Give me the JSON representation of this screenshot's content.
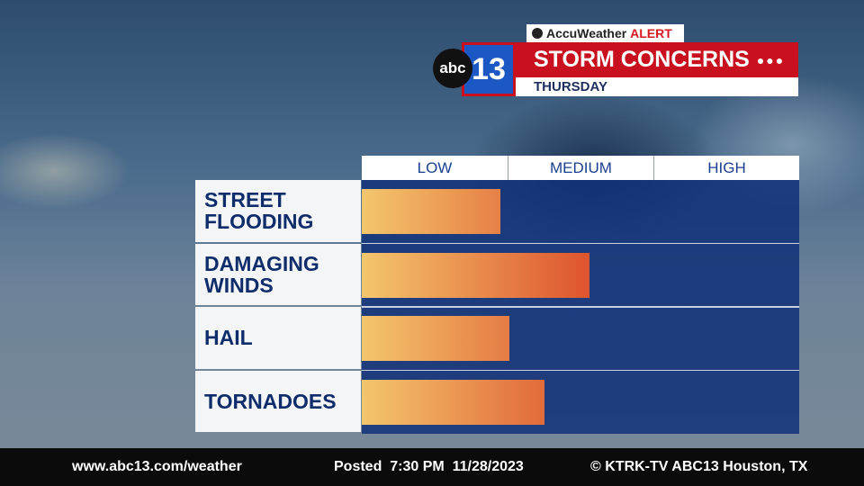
{
  "header": {
    "brand": "AccuWeather",
    "alert": "ALERT",
    "logo_text": "abc",
    "logo_number": "13",
    "title": "STORM CONCERNS",
    "subtitle": "THURSDAY"
  },
  "chart_data": {
    "type": "bar",
    "orientation": "horizontal",
    "categories": [
      "STREET FLOODING",
      "DAMAGING WINDS",
      "HAIL",
      "TORNADOES"
    ],
    "values": [
      0.95,
      1.56,
      1.01,
      1.25
    ],
    "xlim": [
      0,
      3
    ],
    "levels": [
      "LOW",
      "MEDIUM",
      "HIGH"
    ],
    "color": [
      "#f3c66c",
      "#d8341c"
    ]
  },
  "footer": {
    "website": "www.abc13.com/weather",
    "posted": "Posted",
    "time": "7:30 PM",
    "date": "11/28/2023",
    "copyright": "© KTRK-TV ABC13 Houston, TX"
  }
}
